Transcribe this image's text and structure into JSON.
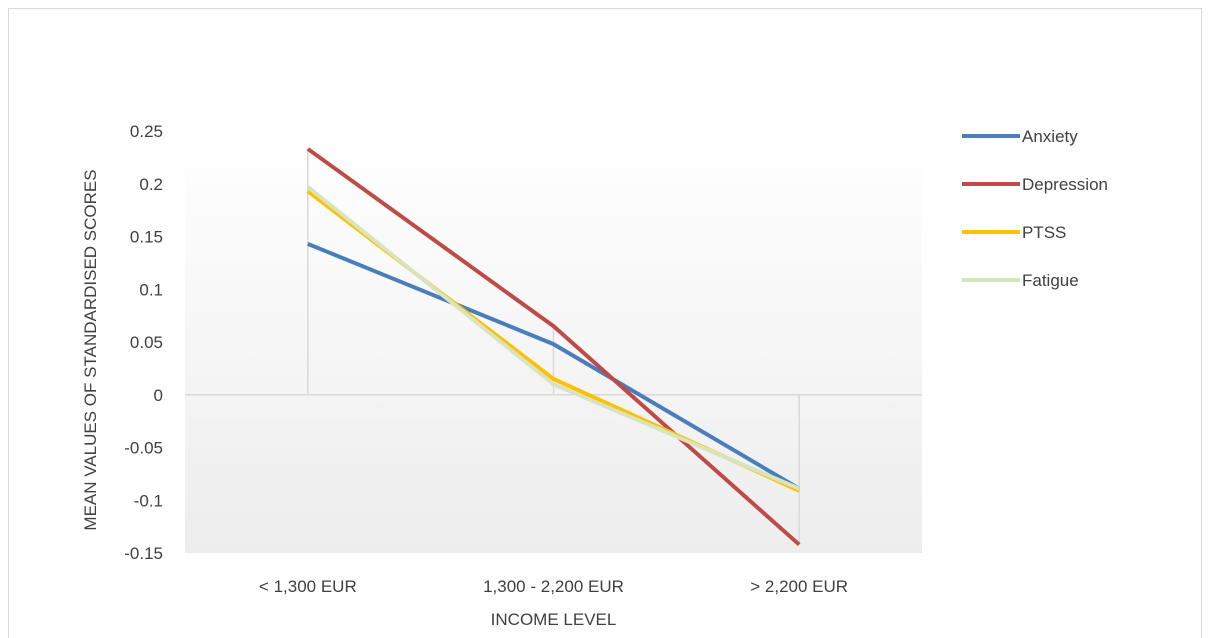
{
  "chart_data": {
    "type": "line",
    "title": "",
    "xlabel": "INCOME LEVEL",
    "ylabel": "MEAN VALUES OF STANDARDISED SCORES",
    "categories": [
      "< 1,300 EUR",
      "1,300  - 2,200 EUR",
      "> 2,200 EUR"
    ],
    "ylim": [
      -0.15,
      0.25
    ],
    "ytick_step": 0.05,
    "yticks": [
      "0.25",
      "0.2",
      "0.15",
      "0.1",
      "0.05",
      "0",
      "-0.05",
      "-0.1",
      "-0.15"
    ],
    "legend_position": "right",
    "grid": false,
    "series": [
      {
        "name": "Anxiety",
        "values": [
          0.143,
          0.048,
          -0.089
        ],
        "color": "#4a7ebb"
      },
      {
        "name": "Depression",
        "values": [
          0.233,
          0.065,
          -0.142
        ],
        "color": "#be4b48"
      },
      {
        "name": "PTSS",
        "values": [
          0.193,
          0.015,
          -0.091
        ],
        "color": "#ffc000"
      },
      {
        "name": "Fatigue",
        "values": [
          0.197,
          0.01,
          -0.089
        ],
        "color": "#d7e4bd"
      }
    ]
  }
}
